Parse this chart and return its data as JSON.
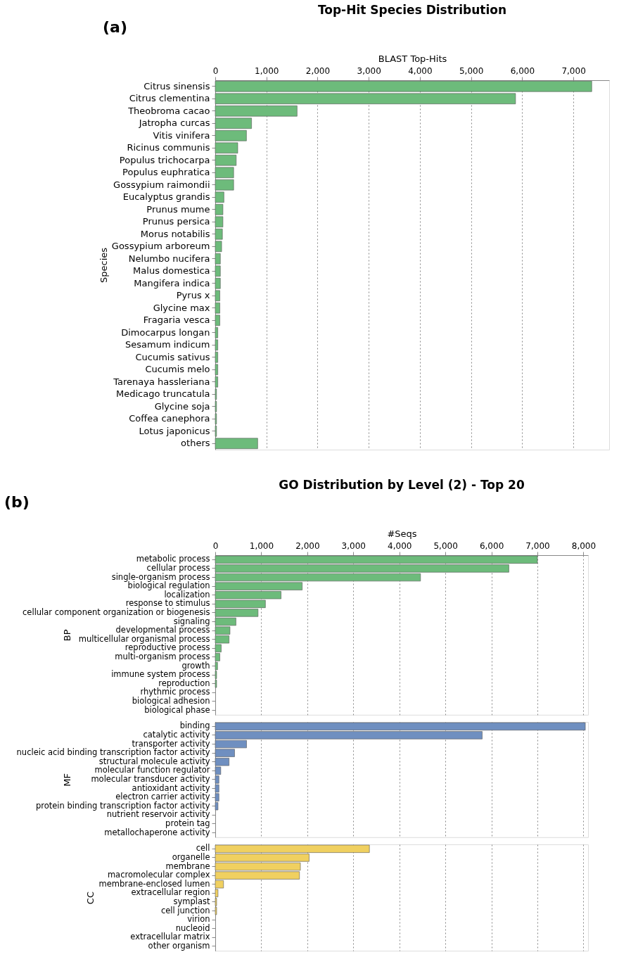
{
  "chart_data": [
    {
      "type": "bar",
      "orientation": "horizontal",
      "title": "Top-Hit Species Distribution",
      "xlabel": "BLAST Top-Hits",
      "ylabel": "Species",
      "annotations": [
        "(a)"
      ],
      "categories": [
        "Citrus sinensis",
        "Citrus clementina",
        "Theobroma cacao",
        "Jatropha curcas",
        "Vitis vinifera",
        "Ricinus communis",
        "Populus trichocarpa",
        "Populus euphratica",
        "Gossypium raimondii",
        "Eucalyptus grandis",
        "Prunus mume",
        "Prunus persica",
        "Morus notabilis",
        "Gossypium arboreum",
        "Nelumbo nucifera",
        "Malus domestica",
        "Mangifera indica",
        "Pyrus x",
        "Glycine max",
        "Fragaria vesca",
        "Dimocarpus longan",
        "Sesamum indicum",
        "Cucumis sativus",
        "Cucumis melo",
        "Tarenaya hassleriana",
        "Medicago truncatula",
        "Glycine soja",
        "Coffea canephora",
        "Lotus japonicus",
        "others"
      ],
      "values": [
        7360,
        5870,
        1600,
        710,
        610,
        440,
        410,
        360,
        360,
        170,
        150,
        150,
        140,
        125,
        100,
        100,
        100,
        90,
        90,
        90,
        50,
        50,
        50,
        50,
        50,
        25,
        25,
        25,
        25,
        830
      ],
      "color": "#6dbb7b",
      "xlim": [
        0,
        7700
      ],
      "xticks": [
        0,
        {
          "value": 1000,
          "label": "1,000"
        },
        {
          "value": 2000,
          "label": "2,000"
        },
        {
          "value": 3000,
          "label": "3,000"
        },
        {
          "value": 4000,
          "label": "4,000"
        },
        {
          "value": 5000,
          "label": "5,000"
        },
        {
          "value": 6000,
          "label": "6,000"
        },
        {
          "value": 7000,
          "label": "7,000"
        }
      ],
      "grid": "x"
    },
    {
      "type": "bar",
      "orientation": "horizontal",
      "title": "GO Distribution by Level (2) - Top 20",
      "xlabel": "#Seqs",
      "ylabel": "BP",
      "annotations": [
        "(b)"
      ],
      "categories": [
        "metabolic process",
        "cellular process",
        "single-organism process",
        "biological regulation",
        "localization",
        "response to stimulus",
        "cellular component organization or biogenesis",
        "signaling",
        "developmental process",
        "multicellular organismal process",
        "reproductive process",
        "multi-organism process",
        "growth",
        "immune system process",
        "reproduction",
        "rhythmic process",
        "biological adhesion",
        "biological phase"
      ],
      "values": [
        7000,
        6380,
        4460,
        1890,
        1430,
        1090,
        930,
        450,
        320,
        300,
        130,
        100,
        50,
        30,
        30,
        null,
        null,
        null
      ],
      "color": "#6dbb7b",
      "xlim": [
        0,
        8100
      ],
      "xticks": [
        0,
        {
          "value": 1000,
          "label": "1,000"
        },
        {
          "value": 2000,
          "label": "2,000"
        },
        {
          "value": 3000,
          "label": "3,000"
        },
        {
          "value": 4000,
          "label": "4,000"
        },
        {
          "value": 5000,
          "label": "5,000"
        },
        {
          "value": 6000,
          "label": "6,000"
        },
        {
          "value": 7000,
          "label": "7,000"
        },
        {
          "value": 8000,
          "label": "8,000"
        }
      ],
      "grid": "x"
    },
    {
      "type": "bar",
      "orientation": "horizontal",
      "ylabel": "MF",
      "tick_labels": "y",
      "categories": [
        "binding",
        "catalytic activity",
        "transporter activity",
        "nucleic acid binding transcription factor activity",
        "structural molecule activity",
        "molecular function regulator",
        "molecular transducer activity",
        "antioxidant activity",
        "electron carrier activity",
        "protein binding transcription factor activity",
        "nutrient reservoir activity",
        "protein tag",
        "metallochaperone activity"
      ],
      "values": [
        8040,
        5800,
        680,
        420,
        300,
        120,
        80,
        80,
        80,
        60,
        null,
        null,
        null
      ],
      "color": "#6f8fc0",
      "xlim": [
        0,
        8100
      ],
      "xticks": [
        0,
        1000,
        2000,
        3000,
        4000,
        5000,
        6000,
        7000,
        8000
      ],
      "grid": "x"
    },
    {
      "type": "bar",
      "orientation": "horizontal",
      "ylabel": "CC",
      "tick_labels": "y",
      "categories": [
        "cell",
        "organelle",
        "membrane",
        "macromolecular complex",
        "membrane-enclosed lumen",
        "extracellular region",
        "symplast",
        "cell junction",
        "virion",
        "nucleoid",
        "extracellular matrix",
        "other organism"
      ],
      "values": [
        3350,
        2040,
        1850,
        1830,
        180,
        60,
        30,
        30,
        null,
        null,
        null,
        null
      ],
      "color": "#f0d060",
      "xlim": [
        0,
        8100
      ],
      "xticks": [
        0,
        1000,
        2000,
        3000,
        4000,
        5000,
        6000,
        7000,
        8000
      ],
      "grid": "x"
    }
  ]
}
